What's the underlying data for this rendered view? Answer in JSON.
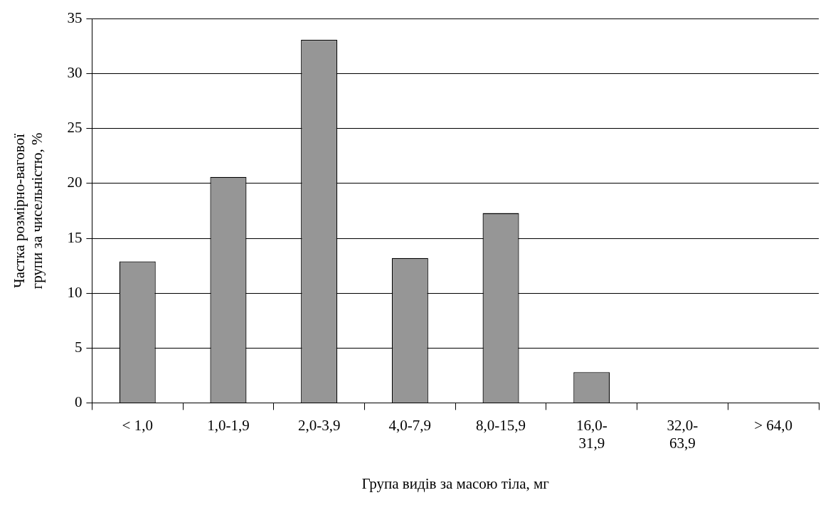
{
  "chart_data": {
    "type": "bar",
    "xlabel": "Група видів за масою тіла, мг",
    "ylabel": "Частка розмірно-вагової групи за чисельністю, %",
    "categories": [
      "< 1,0",
      "1,0-1,9",
      "2,0-3,9",
      "4,0-7,9",
      "8,0-15,9",
      "16,0-31,9",
      "32,0-63,9",
      "> 64,0"
    ],
    "values": [
      12.9,
      20.6,
      33.1,
      13.2,
      17.3,
      2.8,
      0,
      0
    ],
    "color": "#969696",
    "ylim": [
      0,
      35
    ],
    "yticks": [
      0,
      5,
      10,
      15,
      20,
      25,
      30,
      35
    ],
    "grid": "y",
    "legend": false
  }
}
